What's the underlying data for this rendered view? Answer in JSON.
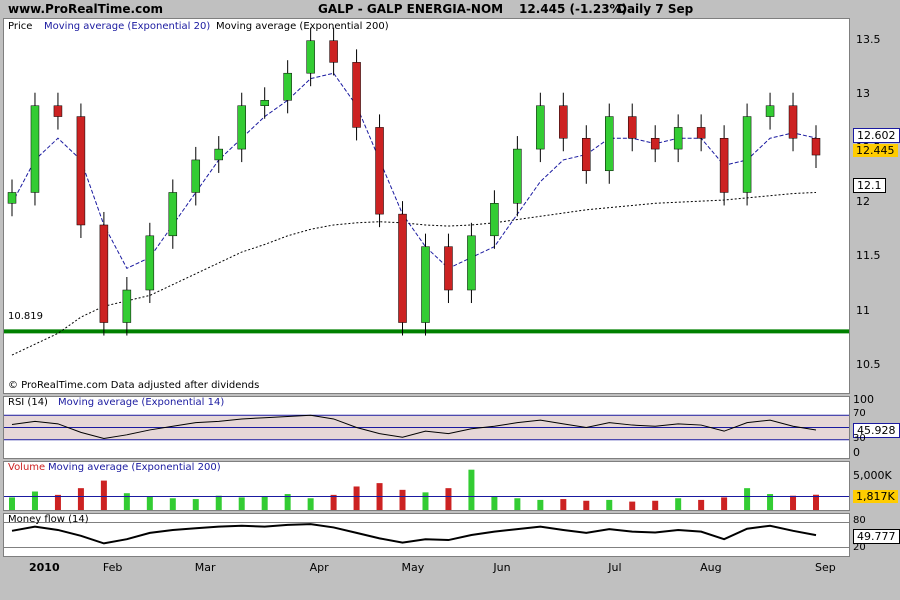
{
  "header": {
    "site": "www.ProRealTime.com",
    "instrument": "GALP - GALP ENERGIA-NOM",
    "quote": "12.445 (-1.23%)",
    "period": "Daily  7 Sep"
  },
  "price_panel": {
    "label": "Price",
    "ema20_label": "Moving average (Exponential 20)",
    "ema200_label": "Moving average (Exponential 200)",
    "footer": "© ProRealTime.com Data adjusted after dividends",
    "support_label": "10.819",
    "ema20_badge": "12.602",
    "last_badge": "12.445",
    "ema200_badge": "12.1"
  },
  "rsi_panel": {
    "label": "RSI (14)",
    "ma_label": "Moving average (Exponential 14)",
    "badge": "45.928",
    "levels": [
      "100",
      "70",
      "50",
      "30",
      "0"
    ]
  },
  "volume_panel": {
    "label": "Volume",
    "ma_label": "Moving average (Exponential 200)",
    "badge": "1,817K",
    "scale": "5,000K"
  },
  "mfi_panel": {
    "label": "Money flow (14)",
    "badge": "49.777",
    "levels": [
      "80",
      "20"
    ]
  },
  "time_axis": [
    "2010",
    "Feb",
    "Mar",
    "Apr",
    "May",
    "Jun",
    "Jul",
    "Aug",
    "Sep"
  ],
  "colors": {
    "up": "#33cc33",
    "down": "#cc2222",
    "ema20": "#1a1aa0",
    "ema200": "#000000",
    "support": "#008000",
    "ema20_badge_bg": "#ffffff",
    "last_badge_bg": "#ffcc00"
  },
  "chart_data": {
    "type": "candlestick",
    "title": "GALP - GALP ENERGIA-NOM",
    "y_ticks": [
      10.5,
      11,
      11.5,
      12,
      12.5,
      13,
      13.5
    ],
    "ylim": [
      10.25,
      13.7
    ],
    "support_level": 10.819,
    "last_close": 12.445,
    "ema20_last": 12.602,
    "ema200_last": 12.1,
    "series": [
      {
        "name": "Price",
        "kind": "candles",
        "x": [
          "2010-01-04",
          "2010-01-11",
          "2010-01-18",
          "2010-01-25",
          "2010-02-01",
          "2010-02-08",
          "2010-02-15",
          "2010-02-22",
          "2010-03-01",
          "2010-03-08",
          "2010-03-15",
          "2010-03-22",
          "2010-03-29",
          "2010-04-05",
          "2010-04-12",
          "2010-04-19",
          "2010-04-26",
          "2010-05-03",
          "2010-05-10",
          "2010-05-17",
          "2010-05-24",
          "2010-05-31",
          "2010-06-07",
          "2010-06-14",
          "2010-06-21",
          "2010-06-28",
          "2010-07-05",
          "2010-07-12",
          "2010-07-19",
          "2010-07-26",
          "2010-08-02",
          "2010-08-09",
          "2010-08-16",
          "2010-08-23",
          "2010-08-30",
          "2010-09-06"
        ],
        "close": [
          12.1,
          12.9,
          12.8,
          11.8,
          10.9,
          11.2,
          11.7,
          12.1,
          12.4,
          12.5,
          12.9,
          12.95,
          13.2,
          13.5,
          13.3,
          12.7,
          11.9,
          10.9,
          11.6,
          11.2,
          11.7,
          12.0,
          12.5,
          12.9,
          12.6,
          12.3,
          12.8,
          12.6,
          12.5,
          12.7,
          12.6,
          12.1,
          12.8,
          12.9,
          12.6,
          12.445
        ]
      },
      {
        "name": "Moving average (Exponential 20)",
        "values": [
          12.0,
          12.4,
          12.6,
          12.4,
          11.8,
          11.4,
          11.5,
          11.8,
          12.1,
          12.4,
          12.6,
          12.8,
          12.95,
          13.15,
          13.2,
          12.9,
          12.4,
          11.9,
          11.6,
          11.4,
          11.5,
          11.6,
          11.9,
          12.2,
          12.4,
          12.45,
          12.6,
          12.6,
          12.55,
          12.6,
          12.6,
          12.35,
          12.4,
          12.6,
          12.65,
          12.602
        ]
      },
      {
        "name": "Moving average (Exponential 200)",
        "values": [
          10.6,
          10.7,
          10.8,
          10.95,
          11.05,
          11.1,
          11.15,
          11.25,
          11.35,
          11.45,
          11.55,
          11.62,
          11.7,
          11.76,
          11.8,
          11.82,
          11.83,
          11.82,
          11.8,
          11.79,
          11.8,
          11.82,
          11.85,
          11.88,
          11.91,
          11.94,
          11.96,
          11.98,
          12.0,
          12.01,
          12.02,
          12.03,
          12.05,
          12.07,
          12.09,
          12.1
        ]
      }
    ],
    "rsi": {
      "ylim": [
        0,
        100
      ],
      "levels": [
        30,
        50,
        70
      ],
      "last": 45.928,
      "values": [
        55,
        60,
        56,
        42,
        32,
        38,
        46,
        52,
        58,
        60,
        64,
        66,
        68,
        70,
        64,
        50,
        40,
        34,
        44,
        40,
        48,
        52,
        58,
        62,
        56,
        50,
        58,
        54,
        52,
        56,
        54,
        44,
        58,
        62,
        52,
        45.928
      ]
    },
    "volume": {
      "scale_label": "5,000K",
      "last": "1,817K",
      "values": [
        1.5,
        2.2,
        1.8,
        2.6,
        3.5,
        2.0,
        1.6,
        1.4,
        1.3,
        1.7,
        1.5,
        1.6,
        1.9,
        1.4,
        1.8,
        2.8,
        3.2,
        2.4,
        2.1,
        2.6,
        4.8,
        1.6,
        1.4,
        1.2,
        1.3,
        1.1,
        1.2,
        1.0,
        1.1,
        1.4,
        1.2,
        1.5,
        2.6,
        1.9,
        1.7,
        1.817
      ]
    },
    "money_flow": {
      "ylim": [
        0,
        100
      ],
      "levels": [
        20,
        80
      ],
      "last": 49.777,
      "values": [
        60,
        70,
        62,
        48,
        30,
        40,
        55,
        62,
        66,
        70,
        72,
        70,
        74,
        76,
        68,
        55,
        42,
        32,
        40,
        38,
        50,
        58,
        64,
        70,
        62,
        55,
        64,
        58,
        56,
        62,
        58,
        40,
        65,
        72,
        60,
        49.777
      ]
    }
  }
}
